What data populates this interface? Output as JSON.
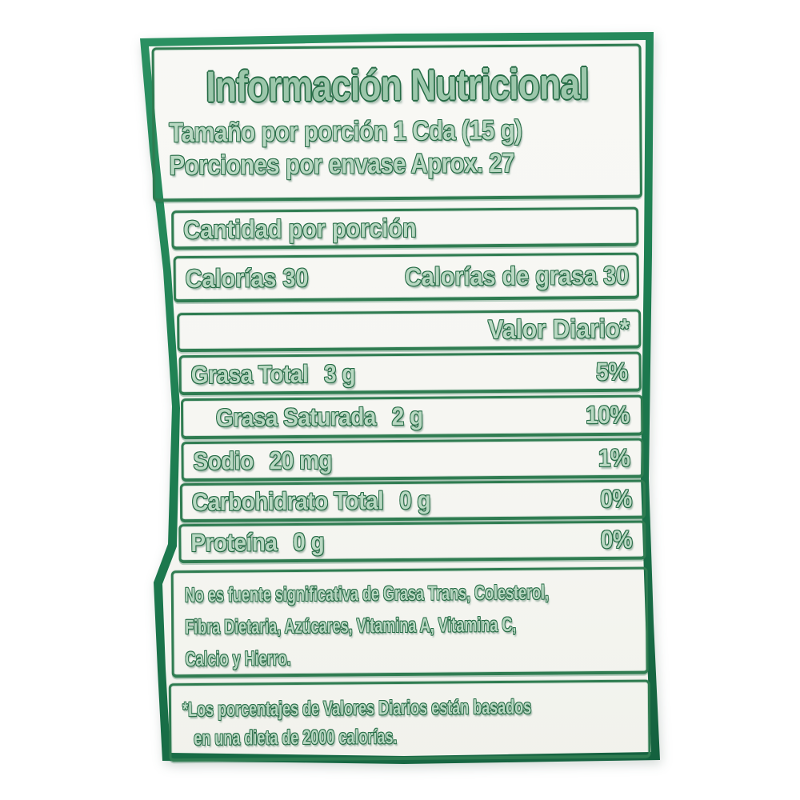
{
  "label": {
    "colors": {
      "frame_green": "#1e7f52",
      "line_green": "#2f7c51",
      "ink_green": "#256b45",
      "paper": "#f6f6f2",
      "text_fill": "#b9d8c2"
    },
    "header": {
      "title": "Información Nutricional",
      "serving_size": "Tamaño por porción 1 Cda (15 g)",
      "servings_per_container": "Porciones por envase Aprox. 27"
    },
    "amount_per_serving": "Cantidad por porción",
    "calories": {
      "label": "Calorías",
      "value": "30"
    },
    "calories_from_fat": {
      "label": "Calorías de grasa",
      "value": "30"
    },
    "daily_value_header": "Valor Diario*",
    "nutrients": [
      {
        "name": "Grasa Total",
        "amount": "3 g",
        "daily_value": "5%"
      },
      {
        "name": "Grasa Saturada",
        "amount": "2 g",
        "daily_value": "10%"
      },
      {
        "name": "Sodio",
        "amount": "20 mg",
        "daily_value": "1%"
      },
      {
        "name": "Carbohidrato Total",
        "amount": "0 g",
        "daily_value": "0%"
      },
      {
        "name": "Proteína",
        "amount": "0 g",
        "daily_value": "0%"
      }
    ],
    "footnote_not_significant": {
      "lines": [
        "No es fuente significativa de Grasa Trans, Colesterol,",
        "Fibra Dietaria, Azúcares, Vitamina A, Vitamina C,",
        "Calcio y Hierro."
      ]
    },
    "footnote_daily_values": {
      "lines": [
        "*Los porcentajes de Valores Diarios están basados",
        "en una dieta de 2000 calorías."
      ]
    }
  }
}
